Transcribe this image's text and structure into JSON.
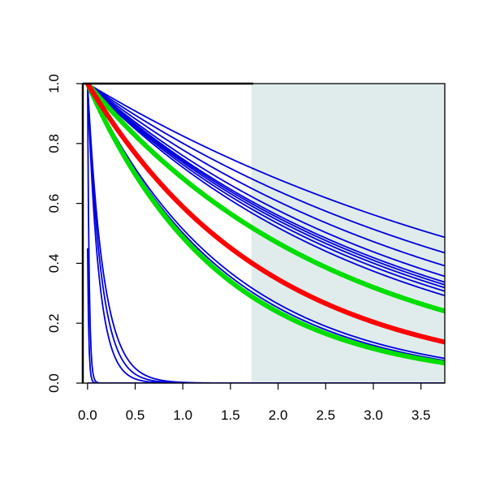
{
  "chart_data": {
    "type": "line",
    "title": "",
    "xlabel": "",
    "ylabel": "",
    "xlim": [
      -0.05,
      3.75
    ],
    "ylim": [
      0.0,
      1.0
    ],
    "x_ticks": [
      "0.0",
      "0.5",
      "1.0",
      "1.5",
      "2.0",
      "2.5",
      "3.0",
      "3.5"
    ],
    "y_ticks": [
      "0.0",
      "0.2",
      "0.4",
      "0.6",
      "0.8",
      "1.0"
    ],
    "shaded_region": {
      "x_from": 1.72,
      "x_to": 3.75,
      "color": "#e0ecec"
    },
    "grid": false,
    "legend": "none",
    "colors": {
      "blue": "#0000dd",
      "green": "#00dd00",
      "red": "#ff0000"
    },
    "series": [
      {
        "color": "blue",
        "width": "thin",
        "y0": 1.0,
        "k": 0.192
      },
      {
        "color": "blue",
        "width": "thin",
        "y0": 1.0,
        "k": 0.222
      },
      {
        "color": "blue",
        "width": "thin",
        "y0": 1.0,
        "k": 0.25
      },
      {
        "color": "blue",
        "width": "thin",
        "y0": 1.0,
        "k": 0.275
      },
      {
        "color": "blue",
        "width": "thin",
        "y0": 1.0,
        "k": 0.29
      },
      {
        "color": "blue",
        "width": "thin",
        "y0": 1.0,
        "k": 0.297
      },
      {
        "color": "blue",
        "width": "thin",
        "y0": 1.0,
        "k": 0.305
      },
      {
        "color": "blue",
        "width": "thin",
        "y0": 1.0,
        "k": 0.315
      },
      {
        "color": "blue",
        "width": "thin",
        "y0": 1.0,
        "k": 0.328
      },
      {
        "color": "blue",
        "width": "thin",
        "y0": 1.0,
        "k": 0.665
      },
      {
        "color": "blue",
        "width": "thin",
        "y0": 1.0,
        "k": 0.69
      },
      {
        "color": "blue",
        "width": "thin",
        "y0": 1.0,
        "k": 6.0
      },
      {
        "color": "blue",
        "width": "thin",
        "y0": 1.0,
        "k": 7.0
      },
      {
        "color": "blue",
        "width": "thin",
        "y0": 1.0,
        "k": 8.5
      },
      {
        "color": "blue",
        "width": "thin",
        "y0": 1.0,
        "k": 60.0
      },
      {
        "color": "blue",
        "width": "thin",
        "y0": 0.45,
        "k": 80.0
      },
      {
        "color": "blue",
        "width": "thin",
        "y0": 0.0,
        "k": 0.0
      },
      {
        "color": "green",
        "width": "thick",
        "y0": 1.0,
        "k": 0.38
      },
      {
        "color": "green",
        "width": "thick",
        "y0": 1.0,
        "k": 0.72
      },
      {
        "color": "red",
        "width": "thick",
        "y0": 1.0,
        "k": 0.53
      }
    ]
  }
}
